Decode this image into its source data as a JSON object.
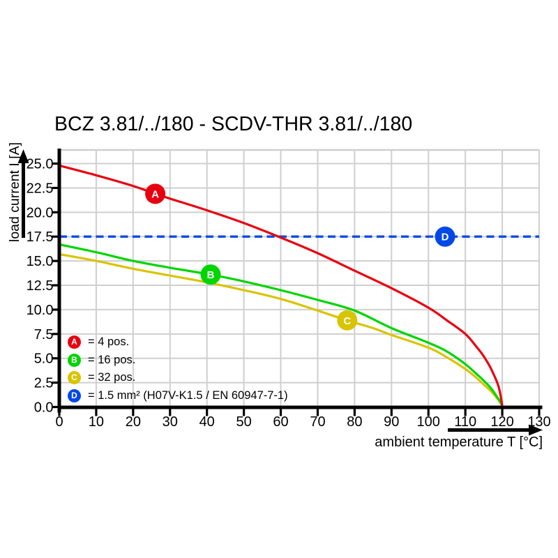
{
  "title": "BCZ 3.81/../180 - SCDV-THR 3.81/../180",
  "chart_data": {
    "type": "line",
    "title": "BCZ 3.81/../180 - SCDV-THR 3.81/../180",
    "xlabel": "ambient temperature T [°C]",
    "ylabel": "load current I [A]",
    "xlim": [
      0,
      130
    ],
    "ylim": [
      0,
      26.4
    ],
    "x_ticks": [
      0,
      10,
      20,
      30,
      40,
      50,
      60,
      70,
      80,
      90,
      100,
      110,
      120,
      130
    ],
    "y_ticks": [
      0,
      2.5,
      5.0,
      7.5,
      10.0,
      12.5,
      15.0,
      17.5,
      20.0,
      22.5,
      25.0
    ],
    "grid": true,
    "grid_color": "#cfcfcf",
    "legend_position": "inside-bottom-left",
    "series": [
      {
        "id": "A",
        "label": "4 pos.",
        "color": "#e8000f",
        "line_style": "solid",
        "marker": {
          "letter": "A",
          "x": 26,
          "y": 21.9
        },
        "points": [
          [
            0,
            24.8
          ],
          [
            10,
            23.8
          ],
          [
            20,
            22.7
          ],
          [
            26,
            21.9
          ],
          [
            30,
            21.4
          ],
          [
            40,
            20.2
          ],
          [
            50,
            18.9
          ],
          [
            60,
            17.4
          ],
          [
            70,
            15.8
          ],
          [
            80,
            14.0
          ],
          [
            90,
            12.2
          ],
          [
            100,
            10.2
          ],
          [
            105,
            8.9
          ],
          [
            110,
            7.5
          ],
          [
            113,
            6.2
          ],
          [
            115,
            5.2
          ],
          [
            117,
            3.9
          ],
          [
            119,
            2.1
          ],
          [
            120,
            0.15
          ]
        ]
      },
      {
        "id": "B",
        "label": "16 pos.",
        "color": "#00d500",
        "line_style": "solid",
        "marker": {
          "letter": "B",
          "x": 41,
          "y": 13.6
        },
        "points": [
          [
            0,
            16.7
          ],
          [
            10,
            15.9
          ],
          [
            20,
            15.0
          ],
          [
            30,
            14.3
          ],
          [
            41,
            13.6
          ],
          [
            50,
            12.9
          ],
          [
            60,
            12.0
          ],
          [
            70,
            11.0
          ],
          [
            80,
            9.9
          ],
          [
            90,
            8.1
          ],
          [
            100,
            6.6
          ],
          [
            105,
            5.7
          ],
          [
            110,
            4.4
          ],
          [
            113,
            3.4
          ],
          [
            115,
            2.7
          ],
          [
            117,
            1.9
          ],
          [
            119,
            0.8
          ],
          [
            120,
            0.15
          ]
        ]
      },
      {
        "id": "C",
        "label": "32 pos.",
        "color": "#d8c400",
        "line_style": "solid",
        "marker": {
          "letter": "C",
          "x": 78,
          "y": 8.9
        },
        "points": [
          [
            0,
            15.7
          ],
          [
            10,
            15.0
          ],
          [
            20,
            14.2
          ],
          [
            30,
            13.5
          ],
          [
            40,
            12.8
          ],
          [
            50,
            12.0
          ],
          [
            60,
            11.1
          ],
          [
            70,
            9.9
          ],
          [
            78,
            8.9
          ],
          [
            85,
            8.1
          ],
          [
            90,
            7.4
          ],
          [
            100,
            6.1
          ],
          [
            105,
            5.1
          ],
          [
            110,
            3.9
          ],
          [
            113,
            3.0
          ],
          [
            115,
            2.3
          ],
          [
            117,
            1.6
          ],
          [
            119,
            0.7
          ],
          [
            120,
            0.1
          ]
        ]
      },
      {
        "id": "D",
        "label": "1.5 mm² (H07V-K1.5 / EN 60947-7-1)",
        "color": "#0049e8",
        "line_style": "dashed",
        "marker": {
          "letter": "D",
          "x": 104.5,
          "y": 17.5
        },
        "points": [
          [
            0,
            17.5
          ],
          [
            130,
            17.5
          ]
        ]
      }
    ]
  },
  "legend": {
    "items": [
      {
        "letter": "A",
        "color": "#e8000f",
        "label": "= 4 pos."
      },
      {
        "letter": "B",
        "color": "#00d500",
        "label": "= 16 pos."
      },
      {
        "letter": "C",
        "color": "#d8c400",
        "label": "= 32 pos."
      },
      {
        "letter": "D",
        "color": "#0049e8",
        "label": "= 1.5 mm² (H07V-K1.5 / EN 60947-7-1)"
      }
    ]
  }
}
